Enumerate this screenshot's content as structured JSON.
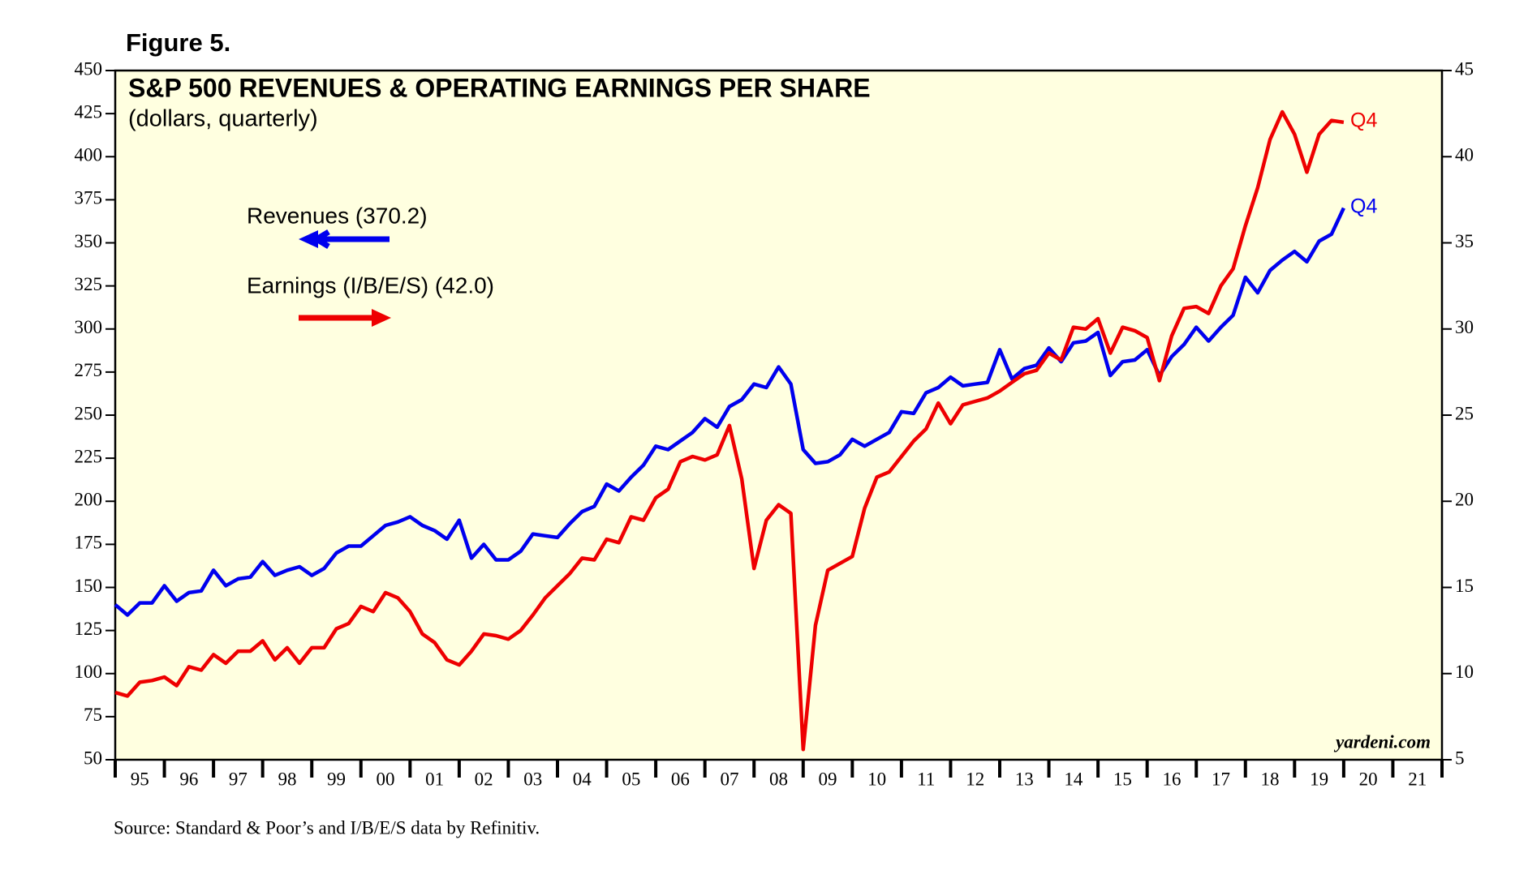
{
  "chart_data": {
    "type": "line",
    "figure_label": "Figure 5.",
    "title": "S&P 500 REVENUES & OPERATING EARNINGS PER SHARE",
    "subtitle": "(dollars, quarterly)",
    "source": "Source: Standard & Poor’s and I/B/E/S data by Refinitiv.",
    "annotations": [
      "Q4",
      "Q4",
      "yardeni.com"
    ],
    "xlim": [
      1995,
      2022
    ],
    "xticks": [
      {
        "value": 1995,
        "label": "95"
      },
      {
        "value": 1996,
        "label": "96"
      },
      {
        "value": 1997,
        "label": "97"
      },
      {
        "value": 1998,
        "label": "98"
      },
      {
        "value": 1999,
        "label": "99"
      },
      {
        "value": 2000,
        "label": "00"
      },
      {
        "value": 2001,
        "label": "01"
      },
      {
        "value": 2002,
        "label": "02"
      },
      {
        "value": 2003,
        "label": "03"
      },
      {
        "value": 2004,
        "label": "04"
      },
      {
        "value": 2005,
        "label": "05"
      },
      {
        "value": 2006,
        "label": "06"
      },
      {
        "value": 2007,
        "label": "07"
      },
      {
        "value": 2008,
        "label": "08"
      },
      {
        "value": 2009,
        "label": "09"
      },
      {
        "value": 2010,
        "label": "10"
      },
      {
        "value": 2011,
        "label": "11"
      },
      {
        "value": 2012,
        "label": "12"
      },
      {
        "value": 2013,
        "label": "13"
      },
      {
        "value": 2014,
        "label": "14"
      },
      {
        "value": 2015,
        "label": "15"
      },
      {
        "value": 2016,
        "label": "16"
      },
      {
        "value": 2017,
        "label": "17"
      },
      {
        "value": 2018,
        "label": "18"
      },
      {
        "value": 2019,
        "label": "19"
      },
      {
        "value": 2020,
        "label": "20"
      },
      {
        "value": 2021,
        "label": "21"
      }
    ],
    "ylim": [
      50,
      450
    ],
    "yticks": [
      50,
      75,
      100,
      125,
      150,
      175,
      200,
      225,
      250,
      275,
      300,
      325,
      350,
      375,
      400,
      425,
      450
    ],
    "y2lim": [
      5,
      45
    ],
    "y2ticks": [
      5,
      10,
      15,
      20,
      25,
      30,
      35,
      40,
      45
    ],
    "background": "#ffffe0",
    "x": [
      1995,
      1995.25,
      1995.5,
      1995.75,
      1996,
      1996.25,
      1996.5,
      1996.75,
      1997,
      1997.25,
      1997.5,
      1997.75,
      1998,
      1998.25,
      1998.5,
      1998.75,
      1999,
      1999.25,
      1999.5,
      1999.75,
      2000,
      2000.25,
      2000.5,
      2000.75,
      2001,
      2001.25,
      2001.5,
      2001.75,
      2002,
      2002.25,
      2002.5,
      2002.75,
      2003,
      2003.25,
      2003.5,
      2003.75,
      2004,
      2004.25,
      2004.5,
      2004.75,
      2005,
      2005.25,
      2005.5,
      2005.75,
      2006,
      2006.25,
      2006.5,
      2006.75,
      2007,
      2007.25,
      2007.5,
      2007.75,
      2008,
      2008.25,
      2008.5,
      2008.75,
      2009,
      2009.25,
      2009.5,
      2009.75,
      2010,
      2010.25,
      2010.5,
      2010.75,
      2011,
      2011.25,
      2011.5,
      2011.75,
      2012,
      2012.25,
      2012.5,
      2012.75,
      2013,
      2013.25,
      2013.5,
      2013.75,
      2014,
      2014.25,
      2014.5,
      2014.75,
      2015,
      2015.25,
      2015.5,
      2015.75,
      2016,
      2016.25,
      2016.5,
      2016.75,
      2017,
      2017.25,
      2017.5,
      2017.75,
      2018,
      2018.25,
      2018.5,
      2018.75,
      2019,
      2019.25,
      2019.5,
      2019.75,
      2020
    ],
    "series": [
      {
        "name": "Revenues (370.2)",
        "color": "#0000ee",
        "axis": "y",
        "values": [
          140,
          134,
          141,
          141,
          151,
          142,
          147,
          148,
          160,
          151,
          155,
          156,
          165,
          157,
          160,
          162,
          157,
          161,
          170,
          174,
          174,
          180,
          186,
          188,
          191,
          186,
          183,
          178,
          189,
          167,
          175,
          166,
          166,
          171,
          181,
          180,
          179,
          187,
          194,
          197,
          210,
          206,
          214,
          221,
          232,
          230,
          235,
          240,
          248,
          243,
          255,
          259,
          268,
          266,
          278,
          268,
          230,
          222,
          223,
          227,
          236,
          232,
          236,
          240,
          252,
          251,
          263,
          266,
          272,
          267,
          268,
          269,
          288,
          271,
          277,
          279,
          289,
          281,
          292,
          293,
          298,
          273,
          281,
          282,
          288,
          273,
          284,
          291,
          301,
          293,
          301,
          308,
          330,
          321,
          334,
          340,
          345,
          339,
          351,
          355,
          370.2
        ]
      },
      {
        "name": "Earnings (I/B/E/S) (42.0)",
        "color": "#ee0000",
        "axis": "y2",
        "values": [
          8.9,
          8.7,
          9.5,
          9.6,
          9.8,
          9.3,
          10.4,
          10.2,
          11.1,
          10.6,
          11.3,
          11.3,
          11.9,
          10.8,
          11.5,
          10.6,
          11.5,
          11.5,
          12.6,
          12.9,
          13.9,
          13.6,
          14.7,
          14.4,
          13.6,
          12.3,
          11.8,
          10.8,
          10.5,
          11.3,
          12.3,
          12.2,
          12.0,
          12.5,
          13.4,
          14.4,
          15.1,
          15.8,
          16.7,
          16.6,
          17.8,
          17.6,
          19.1,
          18.9,
          20.2,
          20.7,
          22.3,
          22.6,
          22.4,
          22.7,
          24.4,
          21.3,
          16.1,
          18.9,
          19.8,
          19.3,
          5.6,
          12.8,
          16.0,
          16.4,
          16.8,
          19.6,
          21.4,
          21.7,
          22.6,
          23.5,
          24.2,
          25.7,
          24.5,
          25.6,
          25.8,
          26.0,
          26.4,
          26.9,
          27.4,
          27.6,
          28.6,
          28.2,
          30.1,
          30.0,
          30.6,
          28.6,
          30.1,
          29.9,
          29.5,
          27.0,
          29.6,
          31.2,
          31.3,
          30.9,
          32.5,
          33.5,
          36.0,
          38.2,
          41.0,
          42.6,
          41.3,
          39.1,
          41.3,
          42.1,
          42.0
        ]
      }
    ]
  }
}
